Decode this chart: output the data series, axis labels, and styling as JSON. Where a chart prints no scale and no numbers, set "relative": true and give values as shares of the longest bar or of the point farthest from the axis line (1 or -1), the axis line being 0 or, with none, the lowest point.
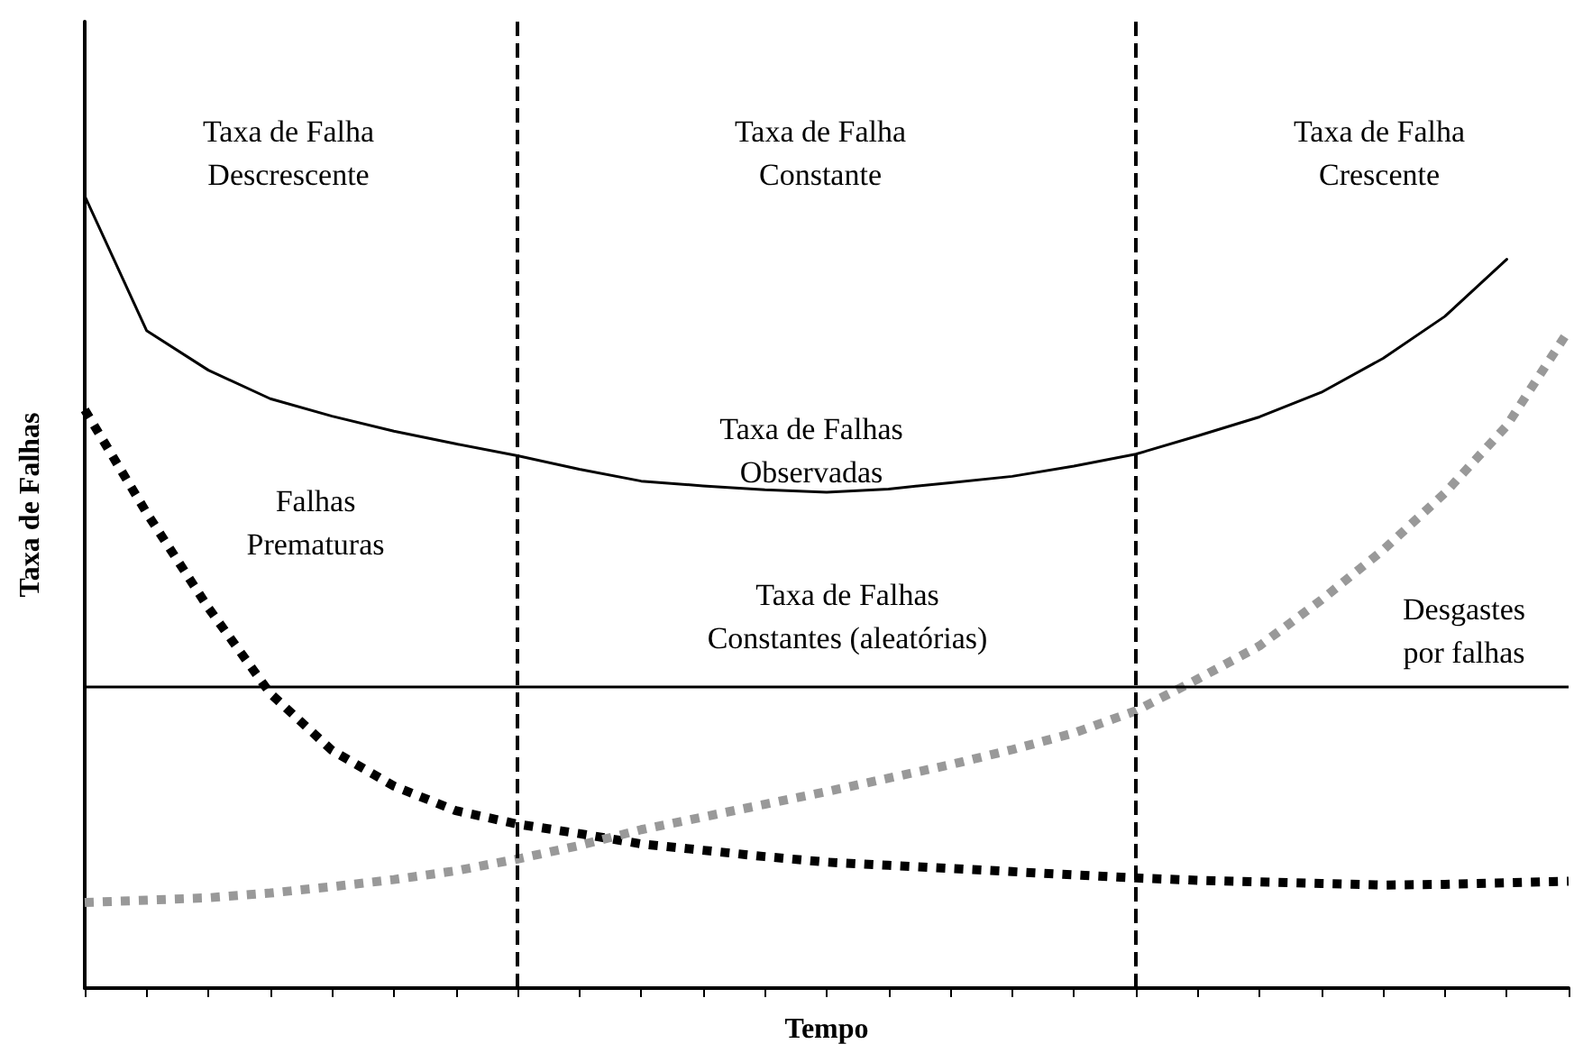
{
  "chart_data": {
    "type": "line",
    "relative": true,
    "xlabel": "Tempo",
    "ylabel": "Taxa de Falhas",
    "categories": [
      null,
      null,
      null,
      null,
      null,
      null,
      null,
      null,
      null,
      null,
      null,
      null,
      null,
      null,
      null,
      null,
      null,
      null,
      null,
      null,
      null,
      null,
      null,
      null,
      null
    ],
    "grid": false,
    "marker": "none",
    "series": [
      {
        "color": "#000000",
        "line_style": "solid",
        "values": [
          1.0,
          0.83,
          0.78,
          0.744,
          0.722,
          0.703,
          0.687,
          0.672,
          0.655,
          0.64,
          0.634,
          0.629,
          0.626,
          0.63,
          0.638,
          0.646,
          0.659,
          0.674,
          0.697,
          0.721,
          0.752,
          0.795,
          0.848,
          0.92,
          null
        ]
      },
      {
        "color": "#000000",
        "line_style": "dotted",
        "values": [
          0.73,
          0.6,
          0.48,
          0.372,
          0.3,
          0.255,
          0.224,
          0.207,
          0.195,
          0.182,
          0.174,
          0.166,
          0.159,
          0.155,
          0.151,
          0.147,
          0.143,
          0.139,
          0.136,
          0.134,
          0.132,
          0.13,
          0.131,
          0.133,
          0.135
        ]
      },
      {
        "color": "#999999",
        "line_style": "dotted",
        "values": [
          0.108,
          0.111,
          0.114,
          0.12,
          0.128,
          0.137,
          0.148,
          0.163,
          0.18,
          0.2,
          0.216,
          0.232,
          0.248,
          0.265,
          0.282,
          0.301,
          0.322,
          0.35,
          0.39,
          0.432,
          0.49,
          0.553,
          0.625,
          0.71,
          0.83
        ]
      }
    ],
    "ref_lines": [
      {
        "axis": "y",
        "value": 0.378,
        "color": "#000000",
        "line_style": "solid"
      }
    ],
    "annotations": [
      "Taxa de Falha\nDescrescente",
      "Taxa de Falha\nConstante",
      "Taxa de Falha\nCrescente",
      "Taxa de Falhas\nObservadas",
      "Falhas\nPrematuras",
      "Taxa de Falhas\nConstantes (aleatórias)",
      "Desgastes\npor falhas"
    ]
  }
}
